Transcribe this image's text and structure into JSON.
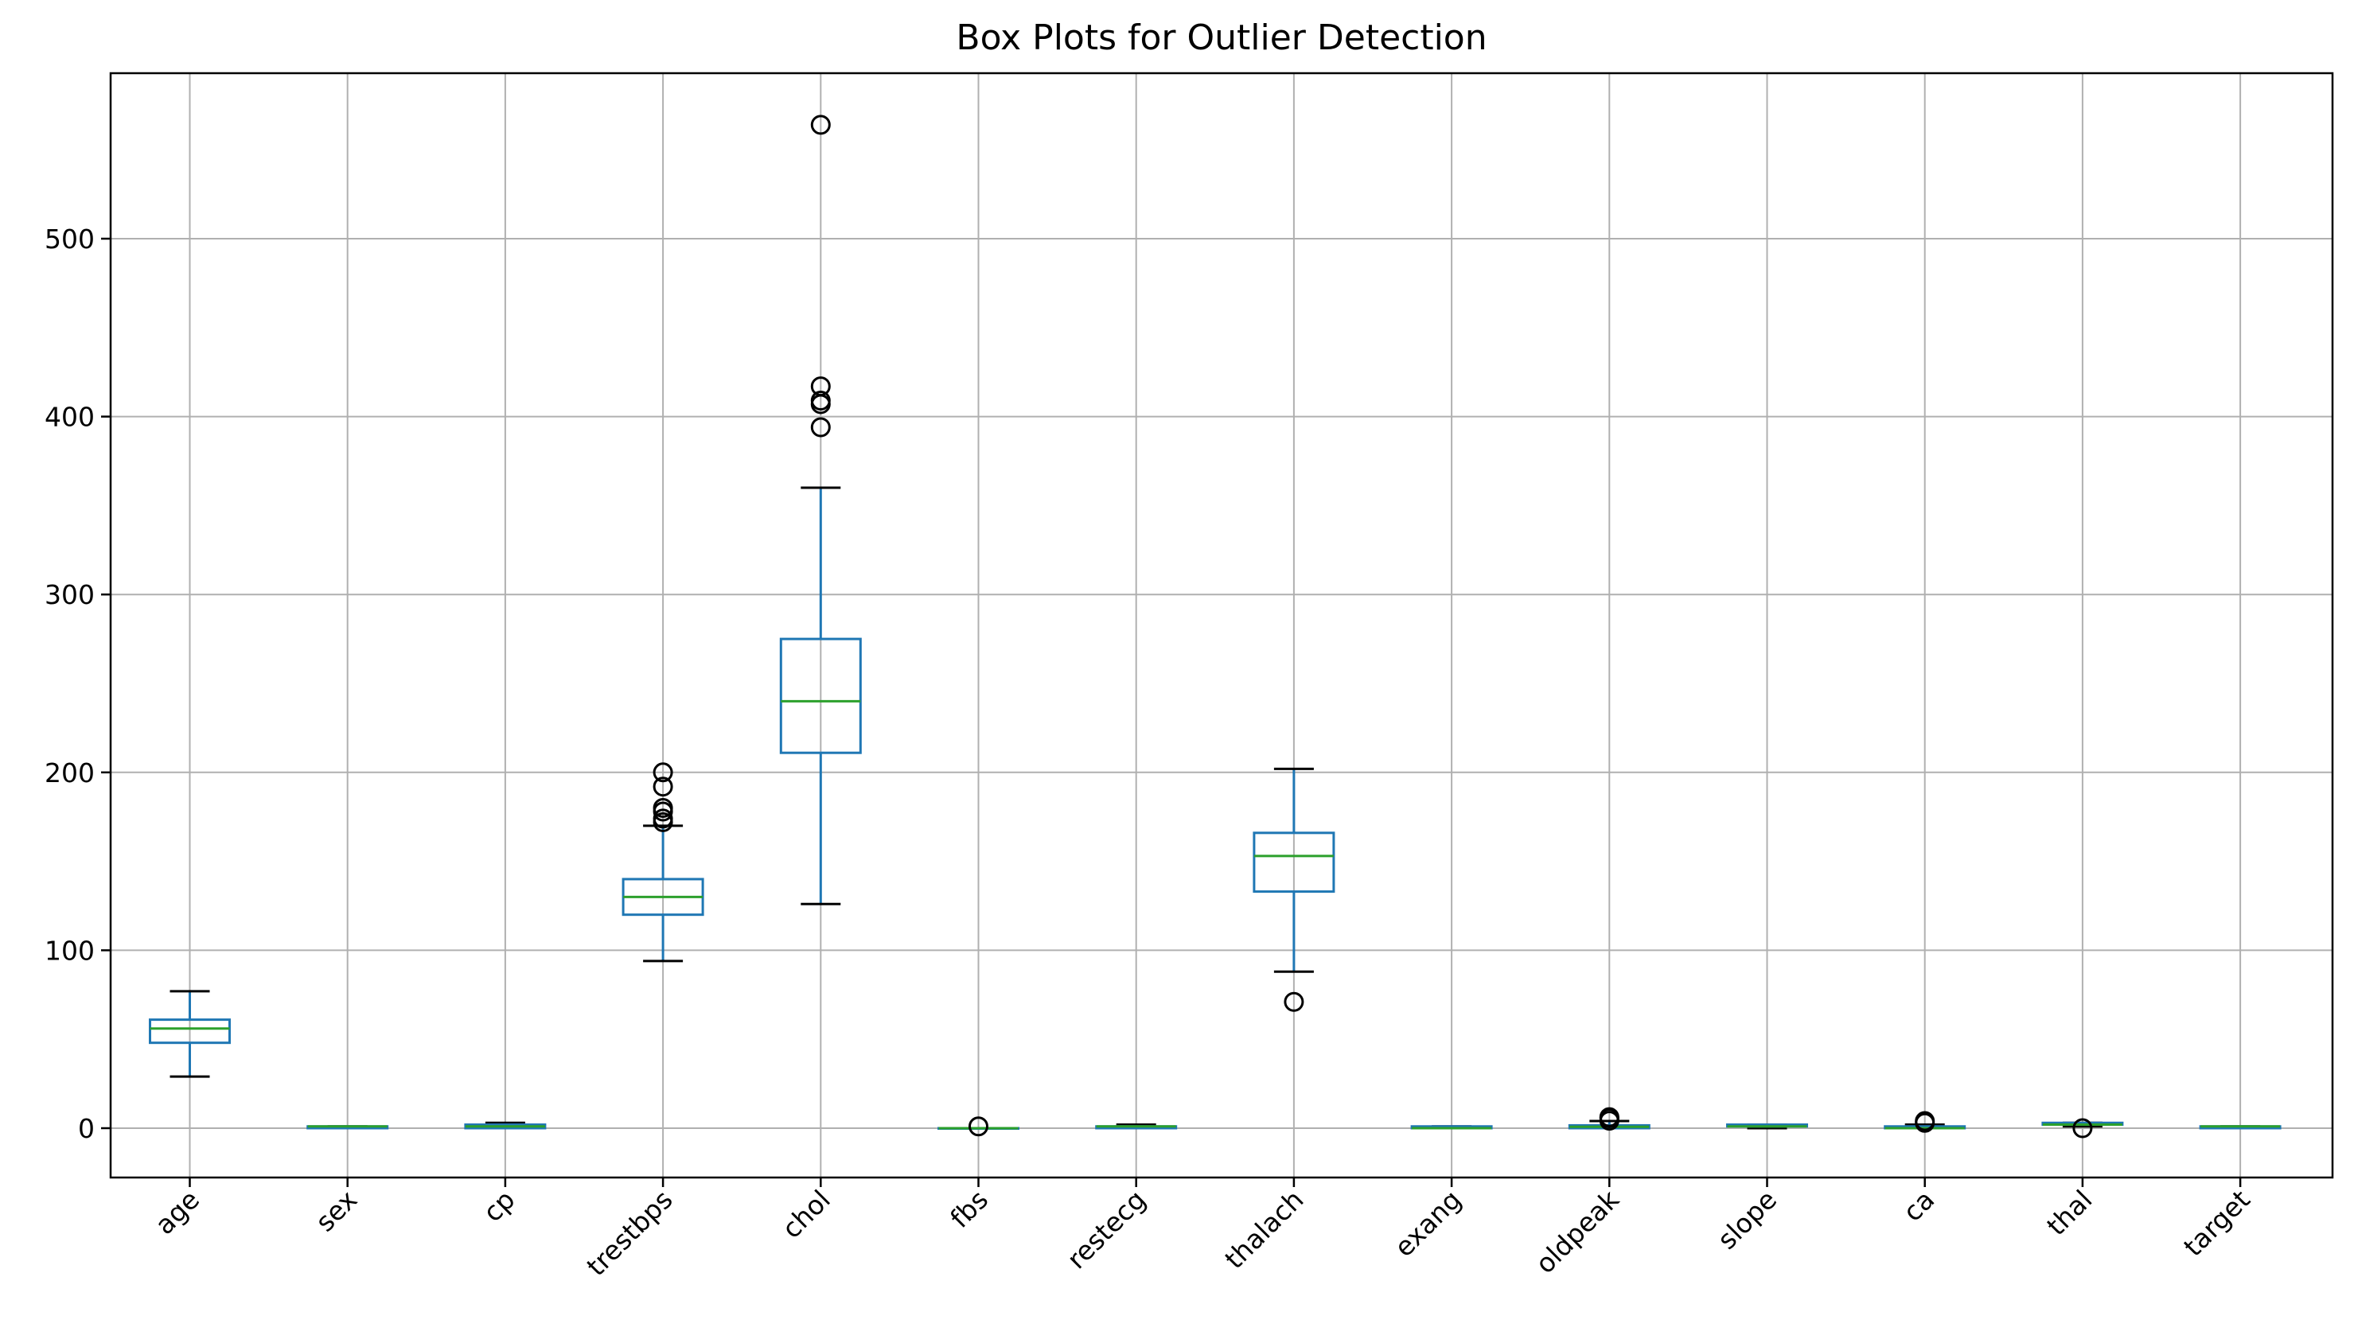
{
  "chart_data": {
    "type": "box",
    "title": "Box Plots for Outlier Detection",
    "xlabel": "",
    "ylabel": "",
    "ylim": [
      -27.5,
      592.5
    ],
    "yticks": [
      0,
      100,
      200,
      300,
      400,
      500
    ],
    "grid": true,
    "colors": {
      "box": "#1f77b4",
      "median": "#2ca02c",
      "cap": "#000000",
      "flier": "#000000",
      "grid": "#b0b0b0"
    },
    "categories": [
      "age",
      "sex",
      "cp",
      "trestbps",
      "chol",
      "fbs",
      "restecg",
      "thalach",
      "exang",
      "oldpeak",
      "slope",
      "ca",
      "thal",
      "target"
    ],
    "boxes": [
      {
        "label": "age",
        "whislo": 29,
        "q1": 48,
        "med": 56,
        "q3": 61,
        "whishi": 77,
        "fliers": []
      },
      {
        "label": "sex",
        "whislo": 0,
        "q1": 0,
        "med": 1,
        "q3": 1,
        "whishi": 1,
        "fliers": []
      },
      {
        "label": "cp",
        "whislo": 0,
        "q1": 0,
        "med": 1,
        "q3": 2,
        "whishi": 3,
        "fliers": []
      },
      {
        "label": "trestbps",
        "whislo": 94,
        "q1": 120,
        "med": 130,
        "q3": 140,
        "whishi": 170,
        "fliers": [
          172,
          174,
          178,
          180,
          192,
          200
        ]
      },
      {
        "label": "chol",
        "whislo": 126,
        "q1": 211,
        "med": 240,
        "q3": 275,
        "whishi": 360,
        "fliers": [
          394,
          407,
          409,
          417,
          564
        ]
      },
      {
        "label": "fbs",
        "whislo": 0,
        "q1": 0,
        "med": 0,
        "q3": 0,
        "whishi": 0,
        "fliers": [
          1
        ]
      },
      {
        "label": "restecg",
        "whislo": 0,
        "q1": 0,
        "med": 1,
        "q3": 1,
        "whishi": 2,
        "fliers": []
      },
      {
        "label": "thalach",
        "whislo": 88,
        "q1": 133,
        "med": 153,
        "q3": 166,
        "whishi": 202,
        "fliers": [
          71
        ]
      },
      {
        "label": "exang",
        "whislo": 0,
        "q1": 0,
        "med": 0,
        "q3": 1,
        "whishi": 1,
        "fliers": []
      },
      {
        "label": "oldpeak",
        "whislo": 0,
        "q1": 0,
        "med": 0.8,
        "q3": 1.6,
        "whishi": 4,
        "fliers": [
          4.2,
          5.6,
          6.2
        ]
      },
      {
        "label": "slope",
        "whislo": 0,
        "q1": 1,
        "med": 1,
        "q3": 2,
        "whishi": 2,
        "fliers": []
      },
      {
        "label": "ca",
        "whislo": 0,
        "q1": 0,
        "med": 0,
        "q3": 1,
        "whishi": 2,
        "fliers": [
          3,
          4
        ]
      },
      {
        "label": "thal",
        "whislo": 1,
        "q1": 2,
        "med": 2,
        "q3": 3,
        "whishi": 3,
        "fliers": [
          0
        ]
      },
      {
        "label": "target",
        "whislo": 0,
        "q1": 0,
        "med": 1,
        "q3": 1,
        "whishi": 1,
        "fliers": []
      }
    ]
  }
}
